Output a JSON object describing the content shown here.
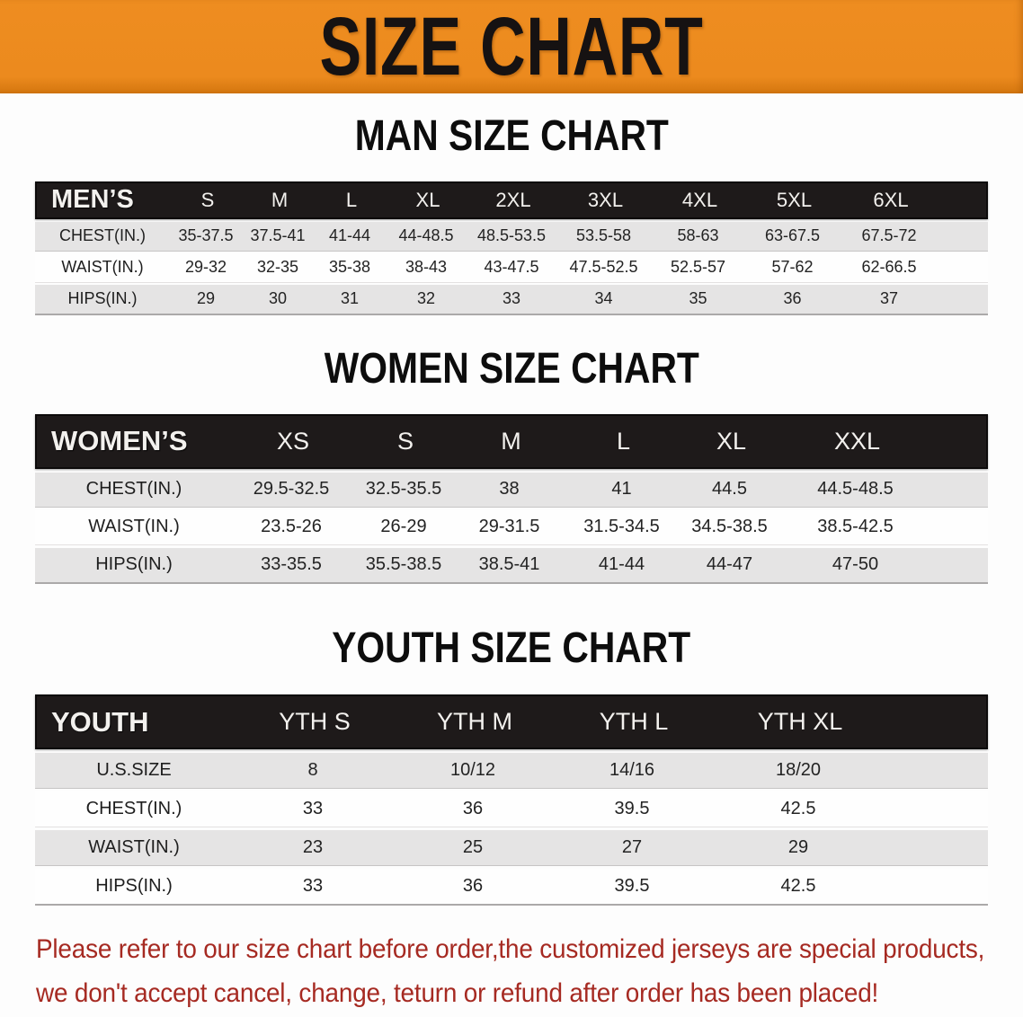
{
  "banner": {
    "title": "SIZE CHART"
  },
  "colors": {
    "banner_orange": "#ec8a1e",
    "banner_orange_dark": "#d87a11",
    "bar_black": "#1e1a1a",
    "row_gray": "#e5e4e4",
    "row_white": "#fefefe",
    "footer_red": "#a62a22"
  },
  "men": {
    "heading": "MAN SIZE CHART",
    "label": "MEN’S",
    "sizes": [
      "S",
      "M",
      "L",
      "XL",
      "2XL",
      "3XL",
      "4XL",
      "5XL",
      "6XL"
    ],
    "rows": [
      {
        "label": "CHEST(IN.)",
        "values": [
          "35-37.5",
          "37.5-41",
          "41-44",
          "44-48.5",
          "48.5-53.5",
          "53.5-58",
          "58-63",
          "63-67.5",
          "67.5-72"
        ]
      },
      {
        "label": "WAIST(IN.)",
        "values": [
          "29-32",
          "32-35",
          "35-38",
          "38-43",
          "43-47.5",
          "47.5-52.5",
          "52.5-57",
          "57-62",
          "62-66.5"
        ]
      },
      {
        "label": "HIPS(IN.)",
        "values": [
          "29",
          "30",
          "31",
          "32",
          "33",
          "34",
          "35",
          "36",
          "37"
        ]
      }
    ]
  },
  "women": {
    "heading": "WOMEN SIZE CHART",
    "label": "WOMEN’S",
    "sizes": [
      "XS",
      "S",
      "M",
      "L",
      "XL",
      "XXL"
    ],
    "rows": [
      {
        "label": "CHEST(IN.)",
        "values": [
          "29.5-32.5",
          "32.5-35.5",
          "38",
          "41",
          "44.5",
          "44.5-48.5"
        ]
      },
      {
        "label": "WAIST(IN.)",
        "values": [
          "23.5-26",
          "26-29",
          "29-31.5",
          "31.5-34.5",
          "34.5-38.5",
          "38.5-42.5"
        ]
      },
      {
        "label": "HIPS(IN.)",
        "values": [
          "33-35.5",
          "35.5-38.5",
          "38.5-41",
          "41-44",
          "44-47",
          "47-50"
        ]
      }
    ]
  },
  "youth": {
    "heading": "YOUTH SIZE CHART",
    "label": "YOUTH",
    "sizes": [
      "YTH S",
      "YTH M",
      "YTH L",
      "YTH XL"
    ],
    "rows": [
      {
        "label": "U.S.SIZE",
        "values": [
          "8",
          "10/12",
          "14/16",
          "18/20"
        ]
      },
      {
        "label": "CHEST(IN.)",
        "values": [
          "33",
          "36",
          "39.5",
          "42.5"
        ]
      },
      {
        "label": "WAIST(IN.)",
        "values": [
          "23",
          "25",
          "27",
          "29"
        ]
      },
      {
        "label": "HIPS(IN.)",
        "values": [
          "33",
          "36",
          "39.5",
          "42.5"
        ]
      }
    ]
  },
  "footer": {
    "line1": "Please refer to our size chart before order,the customized jerseys are special products,",
    "line2": "we don't accept cancel, change, teturn or refund after order has been placed!"
  }
}
